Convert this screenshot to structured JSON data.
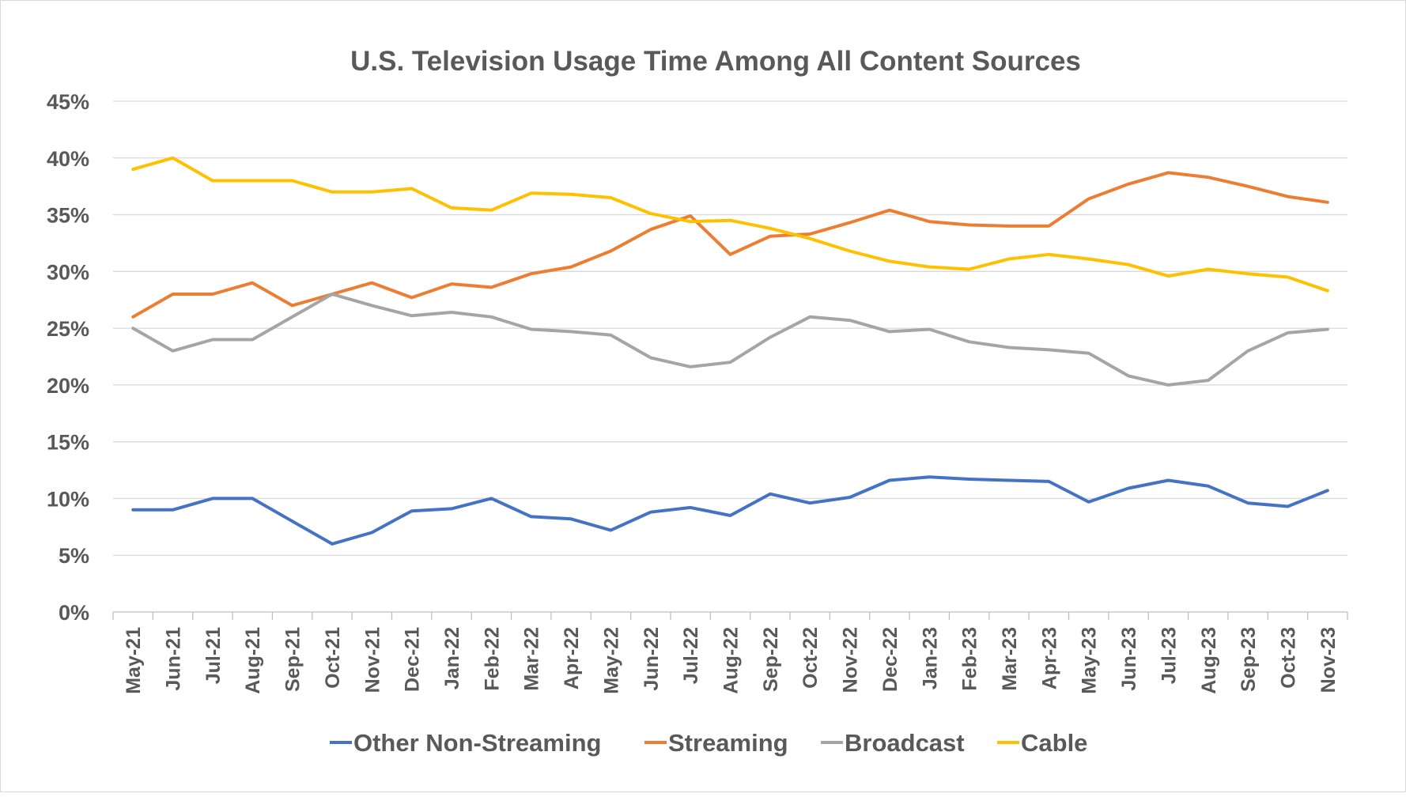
{
  "chart_data": {
    "type": "line",
    "title": "U.S. Television Usage Time Among All Content Sources",
    "xlabel": "",
    "ylabel": "",
    "ylim": [
      0,
      45
    ],
    "yticks": [
      "0%",
      "5%",
      "10%",
      "15%",
      "20%",
      "25%",
      "30%",
      "35%",
      "40%",
      "45%"
    ],
    "grid": true,
    "legend": "bottom",
    "categories": [
      "May-21",
      "Jun-21",
      "Jul-21",
      "Aug-21",
      "Sep-21",
      "Oct-21",
      "Nov-21",
      "Dec-21",
      "Jan-22",
      "Feb-22",
      "Mar-22",
      "Apr-22",
      "May-22",
      "Jun-22",
      "Jul-22",
      "Aug-22",
      "Sep-22",
      "Oct-22",
      "Nov-22",
      "Dec-22",
      "Jan-23",
      "Feb-23",
      "Mar-23",
      "Apr-23",
      "May-23",
      "Jun-23",
      "Jul-23",
      "Aug-23",
      "Sep-23",
      "Oct-23",
      "Nov-23"
    ],
    "series": [
      {
        "name": "Other Non-Streaming",
        "color": "#4472C4",
        "values": [
          9,
          9,
          10,
          10,
          8,
          6,
          7,
          8.9,
          9.1,
          10,
          8.4,
          8.2,
          7.2,
          8.8,
          9.2,
          8.5,
          10.4,
          9.6,
          10.1,
          11.6,
          11.9,
          11.7,
          11.6,
          11.5,
          9.7,
          10.9,
          11.6,
          11.1,
          9.6,
          9.3,
          10.7
        ]
      },
      {
        "name": "Streaming",
        "color": "#ED7D31",
        "values": [
          26,
          28,
          28,
          29,
          27,
          28,
          29,
          27.7,
          28.9,
          28.6,
          29.8,
          30.4,
          31.8,
          33.7,
          34.9,
          31.5,
          33.1,
          33.3,
          34.3,
          35.4,
          34.4,
          34.1,
          34.0,
          34.0,
          36.4,
          37.7,
          38.7,
          38.3,
          37.5,
          36.6,
          36.1
        ]
      },
      {
        "name": "Broadcast",
        "color": "#A5A5A5",
        "values": [
          25,
          23,
          24,
          24,
          26,
          28,
          27,
          26.1,
          26.4,
          26.0,
          24.9,
          24.7,
          24.4,
          22.4,
          21.6,
          22.0,
          24.2,
          26.0,
          25.7,
          24.7,
          24.9,
          23.8,
          23.3,
          23.1,
          22.8,
          20.8,
          20.0,
          20.4,
          23.0,
          24.6,
          24.9
        ]
      },
      {
        "name": "Cable",
        "color": "#FFC000",
        "values": [
          39,
          40,
          38,
          38,
          38,
          37,
          37,
          37.3,
          35.6,
          35.4,
          36.9,
          36.8,
          36.5,
          35.1,
          34.4,
          34.5,
          33.8,
          32.9,
          31.8,
          30.9,
          30.4,
          30.2,
          31.1,
          31.5,
          31.1,
          30.6,
          29.6,
          30.2,
          29.8,
          29.5,
          28.3
        ]
      }
    ]
  }
}
